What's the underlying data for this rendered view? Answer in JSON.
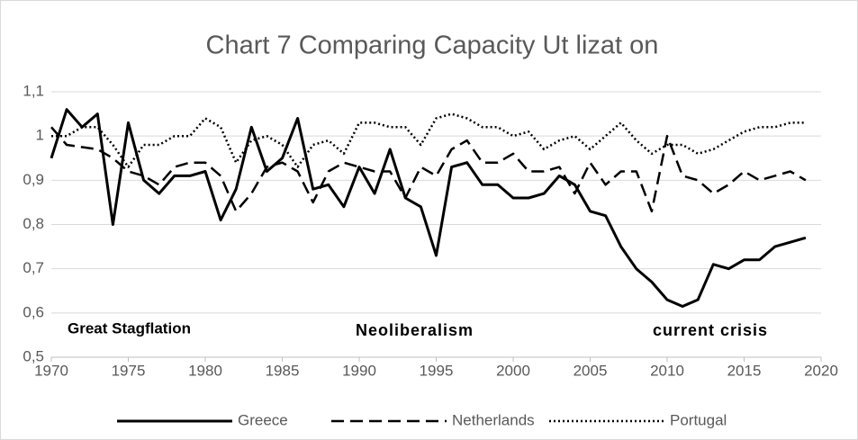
{
  "chart_data": {
    "type": "line",
    "title": "Chart 7 Comparing Capacity Ut lizat on",
    "x": [
      1970,
      1971,
      1972,
      1973,
      1974,
      1975,
      1976,
      1977,
      1978,
      1979,
      1980,
      1981,
      1982,
      1983,
      1984,
      1985,
      1986,
      1987,
      1988,
      1989,
      1990,
      1991,
      1992,
      1993,
      1994,
      1995,
      1996,
      1997,
      1998,
      1999,
      2000,
      2001,
      2002,
      2003,
      2004,
      2005,
      2006,
      2007,
      2008,
      2009,
      2010,
      2011,
      2012,
      2013,
      2014,
      2015,
      2016,
      2017,
      2018,
      2019
    ],
    "series": [
      {
        "name": "Greece",
        "color": "#000000",
        "dash": "solid",
        "values": [
          0.95,
          1.06,
          1.02,
          1.05,
          0.8,
          1.03,
          0.9,
          0.87,
          0.91,
          0.91,
          0.92,
          0.81,
          0.88,
          1.02,
          0.92,
          0.95,
          1.04,
          0.88,
          0.89,
          0.84,
          0.93,
          0.87,
          0.97,
          0.86,
          0.84,
          0.73,
          0.93,
          0.94,
          0.89,
          0.89,
          0.86,
          0.86,
          0.87,
          0.91,
          0.89,
          0.83,
          0.82,
          0.75,
          0.7,
          0.67,
          0.63,
          0.615,
          0.63,
          0.71,
          0.7,
          0.72,
          0.72,
          0.75,
          0.76,
          0.77
        ]
      },
      {
        "name": "Netherlands",
        "color": "#000000",
        "dash": "dashed",
        "values": [
          1.02,
          0.98,
          0.975,
          0.97,
          0.95,
          0.92,
          0.91,
          0.89,
          0.93,
          0.94,
          0.94,
          0.91,
          0.83,
          0.87,
          0.93,
          0.94,
          0.92,
          0.85,
          0.92,
          0.94,
          0.93,
          0.92,
          0.92,
          0.86,
          0.93,
          0.91,
          0.97,
          0.99,
          0.94,
          0.94,
          0.96,
          0.92,
          0.92,
          0.93,
          0.87,
          0.94,
          0.89,
          0.92,
          0.92,
          0.83,
          1.0,
          0.91,
          0.9,
          0.87,
          0.89,
          0.92,
          0.9,
          0.91,
          0.92,
          0.9
        ]
      },
      {
        "name": "Portugal",
        "color": "#000000",
        "dash": "dotted",
        "values": [
          1.0,
          1.0,
          1.02,
          1.02,
          0.98,
          0.93,
          0.98,
          0.98,
          1.0,
          1.0,
          1.04,
          1.02,
          0.94,
          0.99,
          1.0,
          0.98,
          0.93,
          0.98,
          0.99,
          0.96,
          1.03,
          1.03,
          1.02,
          1.02,
          0.98,
          1.04,
          1.05,
          1.04,
          1.02,
          1.02,
          1.0,
          1.01,
          0.97,
          0.99,
          1.0,
          0.97,
          1.0,
          1.03,
          0.99,
          0.96,
          0.98,
          0.98,
          0.96,
          0.97,
          0.99,
          1.01,
          1.02,
          1.02,
          1.03,
          1.03
        ]
      }
    ],
    "xlim": [
      1970,
      2020
    ],
    "xticks": [
      1970,
      1975,
      1980,
      1985,
      1990,
      1995,
      2000,
      2005,
      2010,
      2015,
      2020
    ],
    "ylim": [
      0.5,
      1.1
    ],
    "yticks": [
      {
        "value": 0.5,
        "label": "0,5"
      },
      {
        "value": 0.6,
        "label": "0,6"
      },
      {
        "value": 0.7,
        "label": "0,7"
      },
      {
        "value": 0.8,
        "label": "0,8"
      },
      {
        "value": 0.9,
        "label": "0,9"
      },
      1,
      {
        "value": 1.1,
        "label": "1,1"
      }
    ],
    "grid": true,
    "legend": "bottom",
    "annotations": [
      "Great Stagflation",
      "Neoliberalism",
      "current crisis"
    ]
  }
}
